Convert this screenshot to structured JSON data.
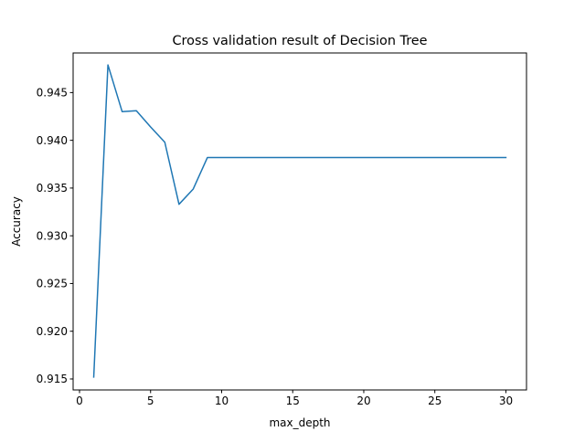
{
  "chart_data": {
    "type": "line",
    "title": "Cross validation result of Decision Tree",
    "xlabel": "max_depth",
    "ylabel": "Accuracy",
    "xlim": [
      -0.45,
      31.45
    ],
    "ylim": [
      0.91385,
      0.94915
    ],
    "xticks": [
      0,
      5,
      10,
      15,
      20,
      25,
      30
    ],
    "xtick_labels": [
      "0",
      "5",
      "10",
      "15",
      "20",
      "25",
      "30"
    ],
    "yticks": [
      0.915,
      0.92,
      0.925,
      0.93,
      0.935,
      0.94,
      0.945
    ],
    "ytick_labels": [
      "0.915",
      "0.920",
      "0.925",
      "0.930",
      "0.935",
      "0.940",
      "0.945"
    ],
    "grid": false,
    "legend": "none",
    "series": [
      {
        "color": "#1f77b4",
        "x": [
          1,
          2,
          3,
          4,
          5,
          6,
          7,
          8,
          9,
          10,
          11,
          12,
          13,
          14,
          15,
          16,
          17,
          18,
          19,
          20,
          21,
          22,
          23,
          24,
          25,
          26,
          27,
          28,
          29,
          30
        ],
        "y": [
          0.9152,
          0.9479,
          0.943,
          0.9431,
          0.9414,
          0.9398,
          0.9333,
          0.9349,
          0.9382,
          0.9382,
          0.9382,
          0.9382,
          0.9382,
          0.9382,
          0.9382,
          0.9382,
          0.9382,
          0.9382,
          0.9382,
          0.9382,
          0.9382,
          0.9382,
          0.9382,
          0.9382,
          0.9382,
          0.9382,
          0.9382,
          0.9382,
          0.9382,
          0.9382
        ]
      }
    ]
  }
}
